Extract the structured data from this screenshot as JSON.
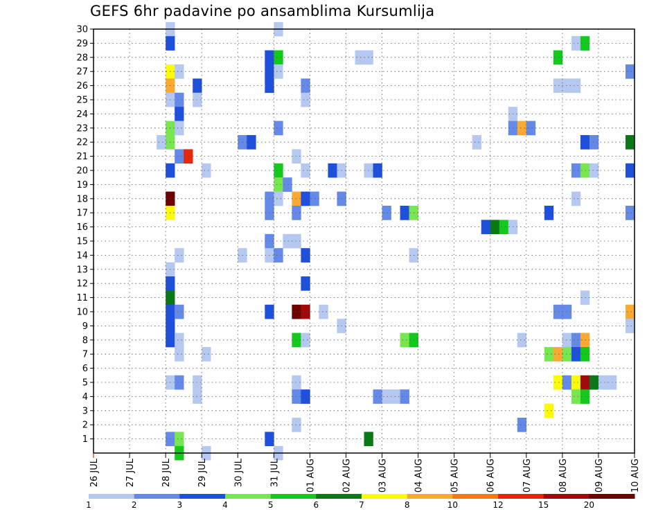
{
  "title": "GEFS 6hr padavine po ansamblima Kursumlija",
  "chart_data": {
    "type": "heatmap",
    "title": "GEFS 6hr padavine po ansamblima Kursumlija",
    "x_ticks": [
      "26 JUL",
      "27 JUL",
      "28 JUL",
      "29 JUL",
      "30 JUL",
      "31 JUL",
      "01 AUG",
      "02 AUG",
      "03 AUG",
      "04 AUG",
      "05 AUG",
      "06 AUG",
      "07 AUG",
      "08 AUG",
      "09 AUG",
      "10 AUG"
    ],
    "y_ticks": [
      1,
      2,
      3,
      4,
      5,
      6,
      7,
      8,
      9,
      10,
      11,
      12,
      13,
      14,
      15,
      16,
      17,
      18,
      19,
      20,
      21,
      22,
      23,
      24,
      25,
      26,
      27,
      28,
      29,
      30
    ],
    "x_range_days": [
      0,
      15
    ],
    "time_step_hours": 6,
    "y_range": [
      0,
      30
    ],
    "grid": "dotted",
    "legend": {
      "position": "bottom",
      "labels": [
        "1",
        "2",
        "3",
        "4",
        "5",
        "6",
        "7",
        "8",
        "10",
        "12",
        "15",
        "20"
      ],
      "colors": [
        "#b4c8f0",
        "#6489e6",
        "#1e50dc",
        "#78e650",
        "#14c81e",
        "#0a7814",
        "#fafa0a",
        "#faaa32",
        "#f57814",
        "#e6280a",
        "#a00a0a",
        "#6e0000"
      ]
    },
    "cells_legend": "each cell = [step_index (6h steps from 26 JUL 00Z), member (y), colour class 0-11]",
    "cells": [
      [
        8,
        30,
        0
      ],
      [
        8,
        29,
        2
      ],
      [
        8,
        27,
        6
      ],
      [
        8,
        26,
        7
      ],
      [
        8,
        25,
        0
      ],
      [
        8,
        23,
        3
      ],
      [
        8,
        22,
        3
      ],
      [
        8,
        20,
        2
      ],
      [
        8,
        18,
        11
      ],
      [
        8,
        17,
        6
      ],
      [
        8,
        13,
        0
      ],
      [
        8,
        12,
        2
      ],
      [
        8,
        11,
        5
      ],
      [
        8,
        10,
        2
      ],
      [
        8,
        9,
        2
      ],
      [
        8,
        8,
        2
      ],
      [
        8,
        5,
        0
      ],
      [
        8,
        1,
        1
      ],
      [
        9,
        27,
        0
      ],
      [
        9,
        25,
        1
      ],
      [
        9,
        24,
        2
      ],
      [
        9,
        23,
        0
      ],
      [
        9,
        21,
        1
      ],
      [
        9,
        14,
        0
      ],
      [
        9,
        10,
        1
      ],
      [
        9,
        8,
        0
      ],
      [
        9,
        7,
        0
      ],
      [
        9,
        5,
        1
      ],
      [
        9,
        1,
        3
      ],
      [
        9,
        0,
        4
      ],
      [
        7,
        22,
        0
      ],
      [
        10,
        21,
        9
      ],
      [
        11,
        26,
        2
      ],
      [
        11,
        25,
        0
      ],
      [
        11,
        5,
        0
      ],
      [
        11,
        4,
        0
      ],
      [
        12,
        20,
        0
      ],
      [
        12,
        7,
        0
      ],
      [
        12,
        0,
        0
      ],
      [
        16,
        22,
        1
      ],
      [
        16,
        14,
        0
      ],
      [
        17,
        22,
        2
      ],
      [
        19,
        28,
        2
      ],
      [
        19,
        27,
        2
      ],
      [
        19,
        26,
        2
      ],
      [
        19,
        15,
        1
      ],
      [
        19,
        18,
        1
      ],
      [
        19,
        17,
        1
      ],
      [
        19,
        14,
        0
      ],
      [
        19,
        10,
        2
      ],
      [
        19,
        1,
        2
      ],
      [
        20,
        28,
        4
      ],
      [
        20,
        27,
        0
      ],
      [
        20,
        23,
        1
      ],
      [
        20,
        20,
        4
      ],
      [
        20,
        19,
        3
      ],
      [
        20,
        18,
        0
      ],
      [
        20,
        14,
        1
      ],
      [
        20,
        0,
        0
      ],
      [
        20,
        30,
        0
      ],
      [
        21,
        19,
        1
      ],
      [
        21,
        15,
        0
      ],
      [
        22,
        21,
        0
      ],
      [
        22,
        18,
        7
      ],
      [
        22,
        17,
        1
      ],
      [
        22,
        15,
        0
      ],
      [
        22,
        10,
        11
      ],
      [
        22,
        8,
        4
      ],
      [
        22,
        5,
        0
      ],
      [
        22,
        4,
        1
      ],
      [
        22,
        2,
        0
      ],
      [
        23,
        26,
        1
      ],
      [
        23,
        25,
        0
      ],
      [
        23,
        20,
        0
      ],
      [
        23,
        18,
        2
      ],
      [
        23,
        14,
        2
      ],
      [
        23,
        12,
        2
      ],
      [
        23,
        10,
        10
      ],
      [
        23,
        8,
        0
      ],
      [
        23,
        4,
        2
      ],
      [
        24,
        18,
        1
      ],
      [
        25,
        10,
        0
      ],
      [
        26,
        20,
        2
      ],
      [
        27,
        20,
        0
      ],
      [
        27,
        18,
        1
      ],
      [
        27,
        9,
        0
      ],
      [
        29,
        28,
        0
      ],
      [
        30,
        28,
        0
      ],
      [
        30,
        20,
        0
      ],
      [
        30,
        1,
        5
      ],
      [
        31,
        20,
        2
      ],
      [
        31,
        4,
        1
      ],
      [
        32,
        17,
        1
      ],
      [
        32,
        4,
        0
      ],
      [
        33,
        4,
        0
      ],
      [
        34,
        17,
        2
      ],
      [
        34,
        8,
        3
      ],
      [
        34,
        4,
        1
      ],
      [
        35,
        17,
        3
      ],
      [
        35,
        14,
        0
      ],
      [
        35,
        8,
        4
      ],
      [
        42,
        22,
        0
      ],
      [
        43,
        16,
        2
      ],
      [
        44,
        16,
        5
      ],
      [
        45,
        16,
        4
      ],
      [
        46,
        16,
        0
      ],
      [
        46,
        24,
        0
      ],
      [
        46,
        23,
        1
      ],
      [
        47,
        23,
        7
      ],
      [
        47,
        8,
        0
      ],
      [
        47,
        2,
        1
      ],
      [
        48,
        23,
        1
      ],
      [
        50,
        17,
        2
      ],
      [
        50,
        7,
        3
      ],
      [
        50,
        3,
        6
      ],
      [
        51,
        28,
        4
      ],
      [
        51,
        26,
        0
      ],
      [
        51,
        10,
        1
      ],
      [
        51,
        7,
        7
      ],
      [
        51,
        5,
        6
      ],
      [
        52,
        26,
        0
      ],
      [
        52,
        10,
        1
      ],
      [
        52,
        8,
        0
      ],
      [
        52,
        7,
        3
      ],
      [
        52,
        5,
        1
      ],
      [
        53,
        29,
        0
      ],
      [
        53,
        26,
        0
      ],
      [
        53,
        20,
        1
      ],
      [
        53,
        18,
        0
      ],
      [
        53,
        8,
        1
      ],
      [
        53,
        7,
        2
      ],
      [
        53,
        5,
        6
      ],
      [
        53,
        4,
        3
      ],
      [
        54,
        29,
        4
      ],
      [
        54,
        22,
        2
      ],
      [
        54,
        20,
        3
      ],
      [
        54,
        11,
        0
      ],
      [
        54,
        8,
        7
      ],
      [
        54,
        7,
        4
      ],
      [
        54,
        5,
        10
      ],
      [
        54,
        4,
        4
      ],
      [
        55,
        22,
        1
      ],
      [
        55,
        20,
        0
      ],
      [
        55,
        5,
        5
      ],
      [
        56,
        5,
        0
      ],
      [
        57,
        5,
        0
      ],
      [
        59,
        27,
        1
      ],
      [
        59,
        22,
        5
      ],
      [
        59,
        20,
        2
      ],
      [
        59,
        17,
        1
      ],
      [
        59,
        10,
        7
      ],
      [
        59,
        9,
        0
      ]
    ]
  }
}
